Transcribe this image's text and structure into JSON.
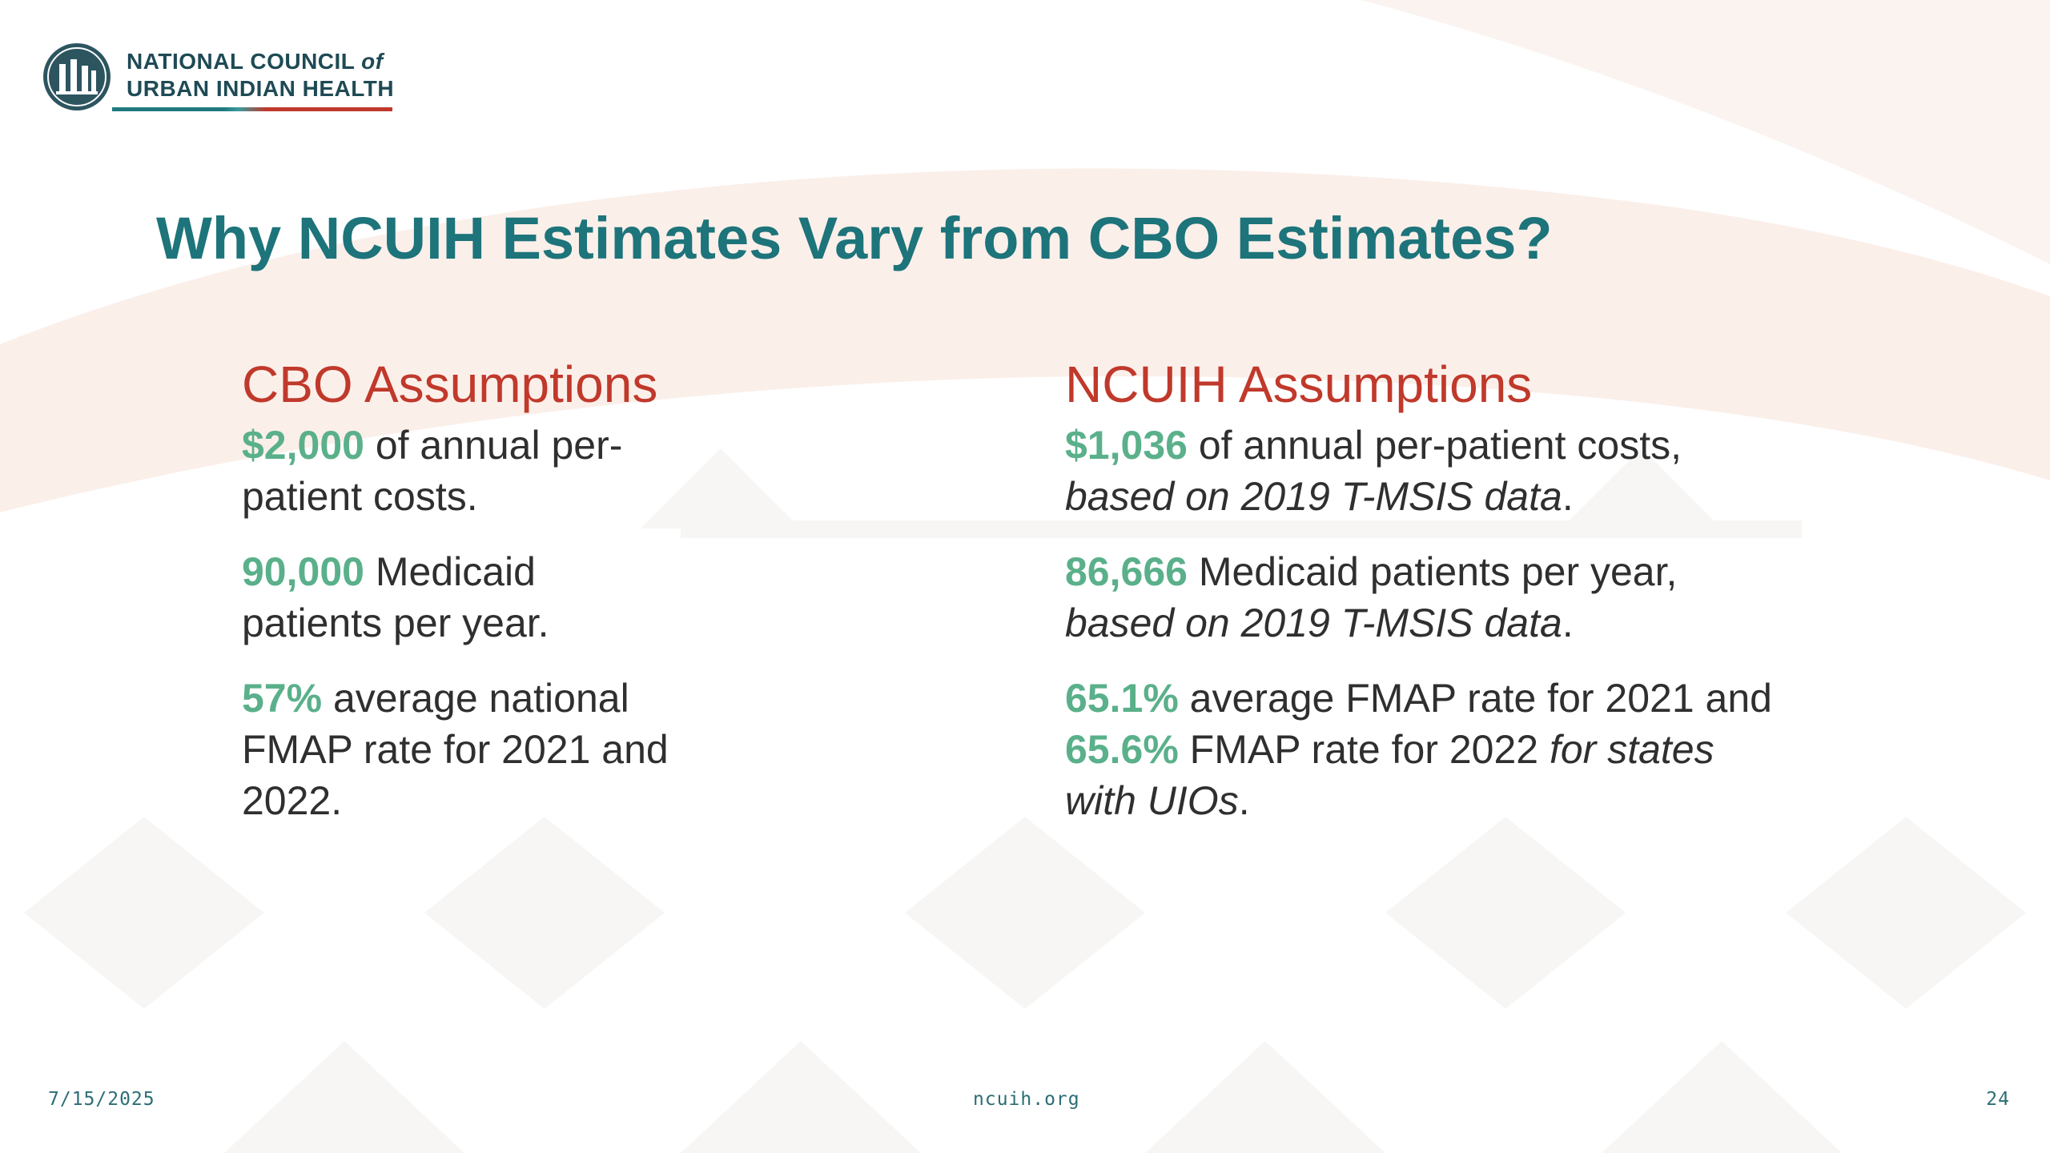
{
  "logo": {
    "line1": "NATIONAL COUNCIL",
    "line1_em": "of",
    "line2": "URBAN INDIAN HEALTH",
    "icon": "ncuih-seal-icon"
  },
  "title": "Why NCUIH Estimates Vary from CBO Estimates?",
  "cbo": {
    "heading": "CBO Assumptions",
    "items": [
      {
        "value": "$2,000",
        "text_a": " of annual per-",
        "text_b": "patient costs."
      },
      {
        "value": "90,000",
        "text_a": " Medicaid",
        "text_b": "patients per year."
      },
      {
        "value": "57%",
        "text_a": " average national",
        "text_b": "FMAP rate for 2021 and",
        "text_c": "2022."
      }
    ]
  },
  "ncuih": {
    "heading": "NCUIH Assumptions",
    "items": [
      {
        "value": "$1,036",
        "text": " of annual per-patient costs,",
        "italic": "based on 2019 T-MSIS data",
        "tail": "."
      },
      {
        "value": "86,666",
        "text": " Medicaid patients per year,",
        "italic": "based on 2019 T-MSIS data",
        "tail": "."
      },
      {
        "value": "65.1%",
        "text": " average FMAP rate for 2021 and",
        "value2": "65.6%",
        "text2": " FMAP rate for 2022 ",
        "italic": "for states",
        "italic2": "with UIOs",
        "tail": "."
      }
    ]
  },
  "footer": {
    "date": "7/15/2025",
    "site": "ncuih.org",
    "page": "24"
  },
  "colors": {
    "title": "#1d747a",
    "heading": "#c0392b",
    "highlight": "#5ab08a"
  }
}
